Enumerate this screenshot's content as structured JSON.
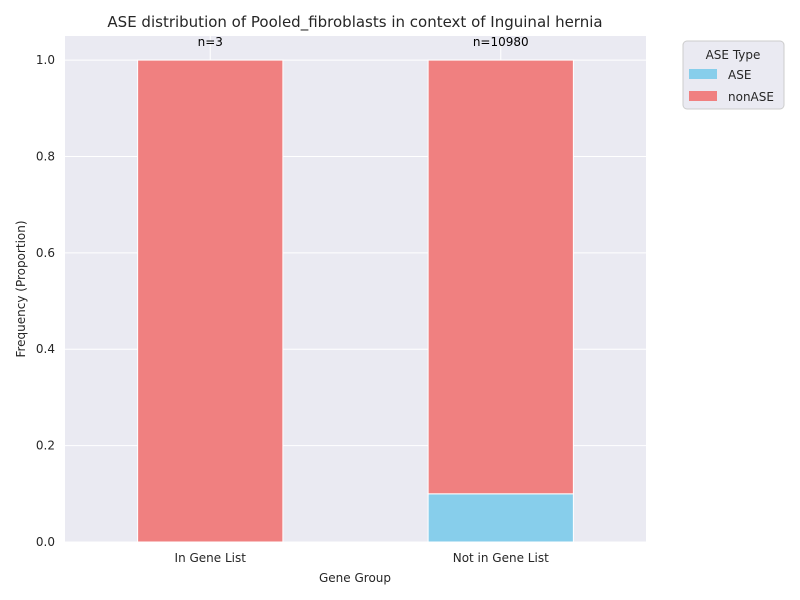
{
  "chart_data": {
    "type": "bar",
    "stacked": true,
    "title": "ASE distribution of Pooled_fibroblasts in context of Inguinal hernia",
    "xlabel": "Gene Group",
    "ylabel": "Frequency (Proportion)",
    "categories": [
      "In Gene List",
      "Not in Gene List"
    ],
    "ylim": [
      0,
      1.05
    ],
    "yticks": [
      "0.0",
      "0.2",
      "0.4",
      "0.6",
      "0.8",
      "1.0"
    ],
    "series": [
      {
        "name": "ASE",
        "values": [
          0.0,
          0.1
        ],
        "color": "#87CEEB"
      },
      {
        "name": "nonASE",
        "values": [
          1.0,
          0.9
        ],
        "color": "#F08080"
      }
    ],
    "counts": [
      "n=3",
      "n=10980"
    ],
    "legend": {
      "title": "ASE Type",
      "placement": "outside-top-right"
    },
    "grid": true,
    "background": "#EAEAF2"
  }
}
